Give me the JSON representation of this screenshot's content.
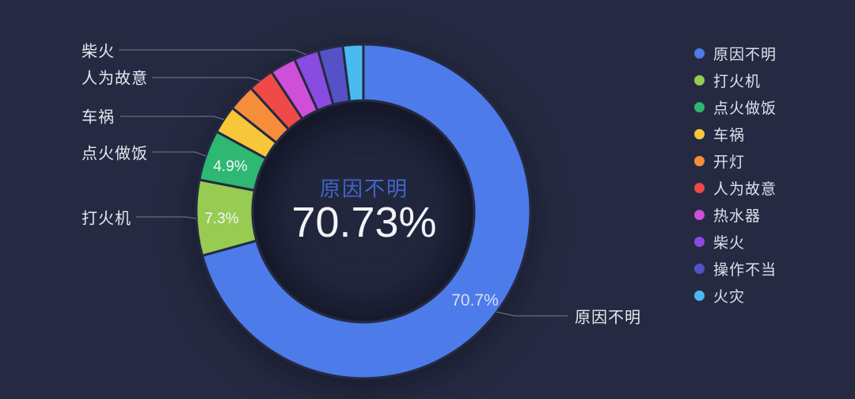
{
  "background": "#252a42",
  "chart_data": {
    "type": "pie",
    "subtype": "donut",
    "legend_position": "right",
    "label_line_color": "#868ba0",
    "center_label": {
      "name": "原因不明",
      "value": "70.73%",
      "name_color": "#4166c6",
      "value_color": "#f2f4f9"
    },
    "series": [
      {
        "name": "原因不明",
        "value": 70.73,
        "color": "#4d7bea",
        "slice_label": "70.7%"
      },
      {
        "name": "打火机",
        "value": 7.3,
        "color": "#97cb52",
        "slice_label": "7.3%"
      },
      {
        "name": "点火做饭",
        "value": 4.9,
        "color": "#2eb872",
        "slice_label": "4.9%"
      },
      {
        "name": "车祸",
        "value": 2.7,
        "color": "#f7c739",
        "estimated": true
      },
      {
        "name": "开灯",
        "value": 2.6,
        "color": "#f68d3b",
        "estimated": true
      },
      {
        "name": "人为故意",
        "value": 2.5,
        "color": "#ef4a47",
        "estimated": true
      },
      {
        "name": "热水器",
        "value": 2.5,
        "color": "#cf4fd8",
        "estimated": true
      },
      {
        "name": "柴火",
        "value": 2.4,
        "color": "#8a4be0",
        "estimated": true
      },
      {
        "name": "操作不当",
        "value": 2.4,
        "color": "#5452c6",
        "estimated": true
      },
      {
        "name": "火灾",
        "value": 1.97,
        "color": "#49baf0",
        "estimated": true
      }
    ]
  }
}
